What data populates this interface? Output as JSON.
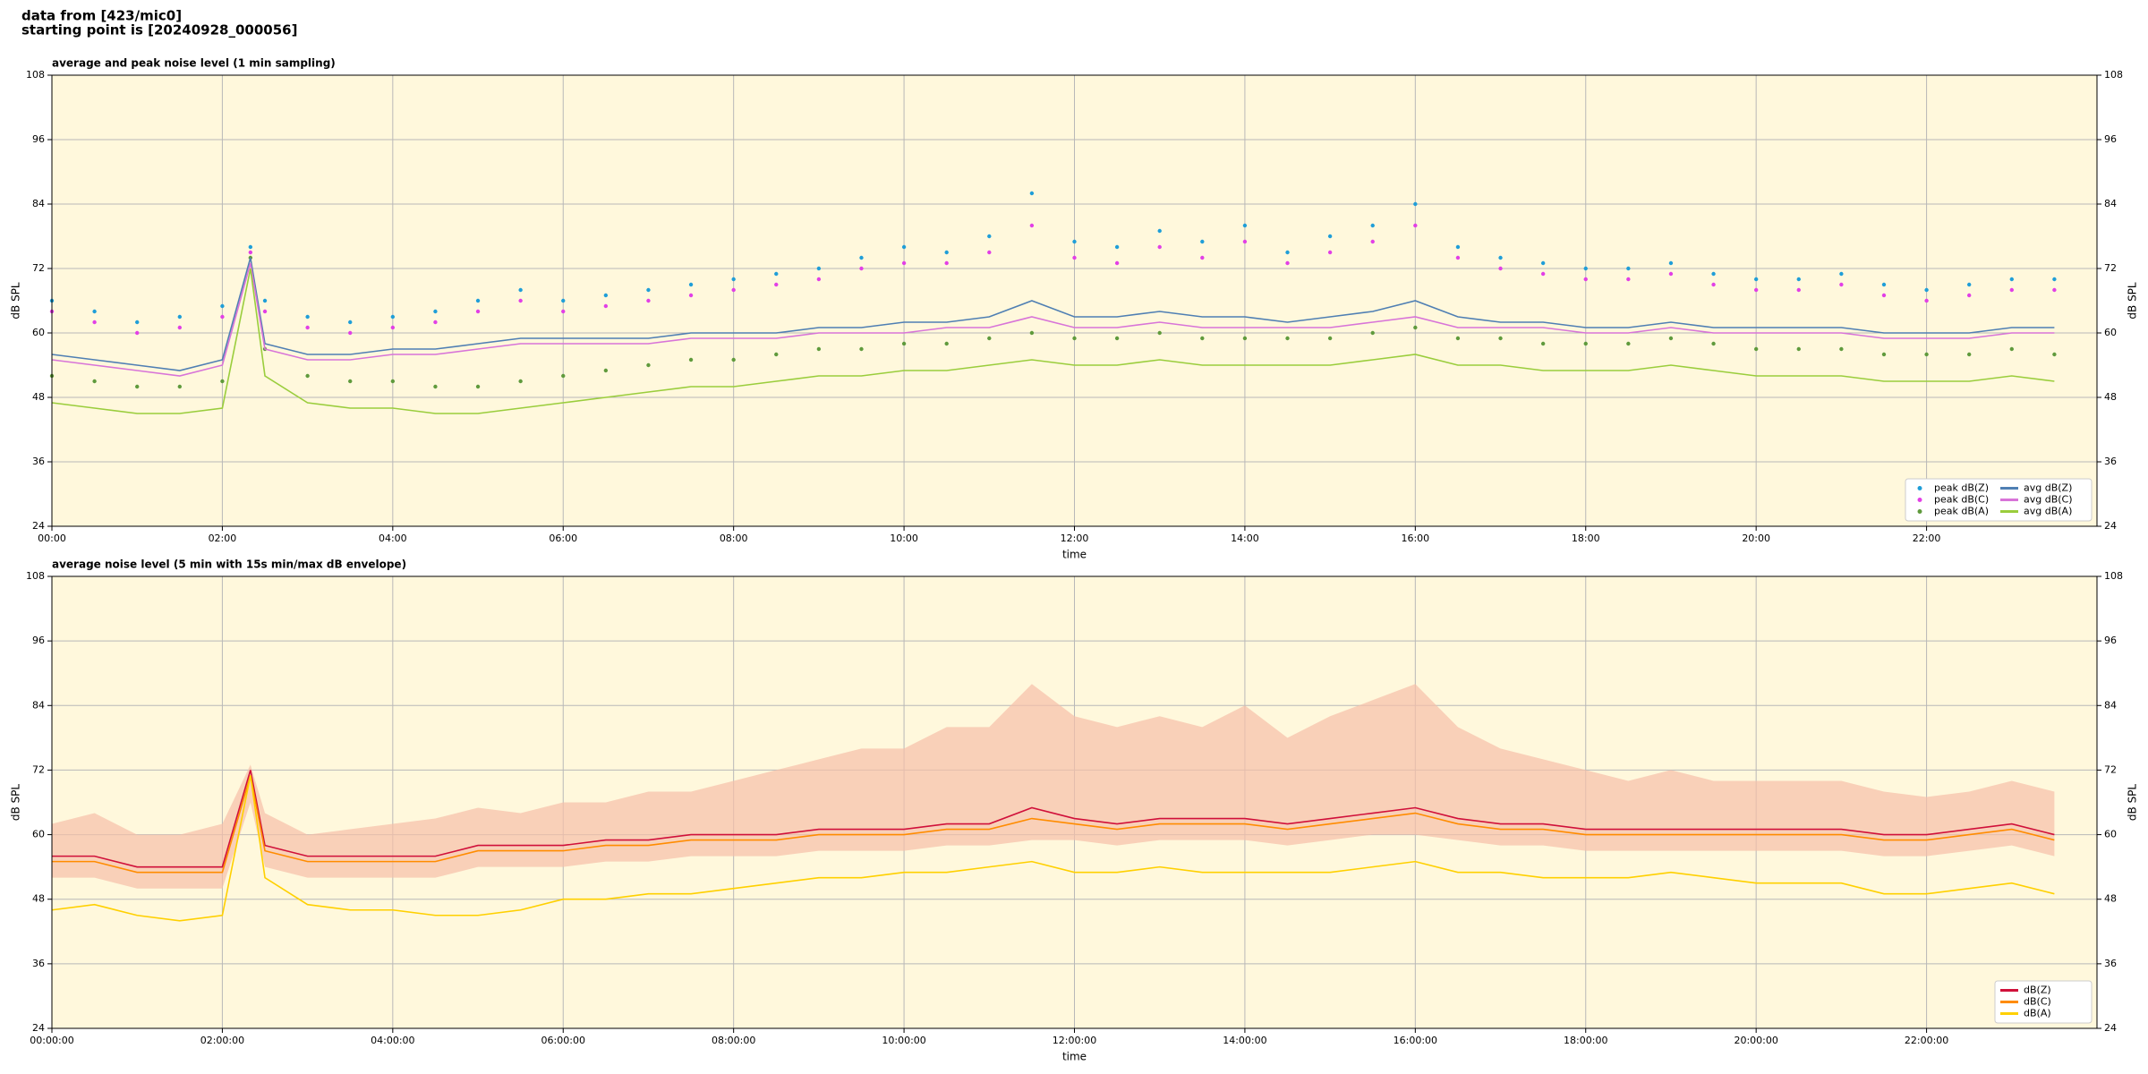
{
  "header": {
    "line1": "data from [423/mic0]",
    "line2": "starting point is [20240928_000056]"
  },
  "chart_data": [
    {
      "type": "line",
      "title": "average and peak noise level (1 min sampling)",
      "xlabel": "time",
      "ylabel": "dB SPL",
      "xlim": [
        0,
        24
      ],
      "ylim": [
        24,
        108
      ],
      "grid": true,
      "legend": "lower right",
      "legend_ncol": 2,
      "xticks": [
        {
          "value": 0,
          "label": "00:00"
        },
        {
          "value": 2,
          "label": "02:00"
        },
        {
          "value": 4,
          "label": "04:00"
        },
        {
          "value": 6,
          "label": "06:00"
        },
        {
          "value": 8,
          "label": "08:00"
        },
        {
          "value": 10,
          "label": "10:00"
        },
        {
          "value": 12,
          "label": "12:00"
        },
        {
          "value": 14,
          "label": "14:00"
        },
        {
          "value": 16,
          "label": "16:00"
        },
        {
          "value": 18,
          "label": "18:00"
        },
        {
          "value": 20,
          "label": "20:00"
        },
        {
          "value": 22,
          "label": "22:00"
        }
      ],
      "yticks": [
        24,
        36,
        48,
        60,
        72,
        84,
        96,
        108
      ],
      "x": [
        0,
        0.5,
        1,
        1.5,
        2,
        2.33,
        2.5,
        3,
        3.5,
        4,
        4.5,
        5,
        5.5,
        6,
        6.5,
        7,
        7.5,
        8,
        8.5,
        9,
        9.5,
        10,
        10.5,
        11,
        11.5,
        12,
        12.5,
        13,
        13.5,
        14,
        14.5,
        15,
        15.5,
        16,
        16.5,
        17,
        17.5,
        18,
        18.5,
        19,
        19.5,
        20,
        20.5,
        21,
        21.5,
        22,
        22.5,
        23,
        23.5
      ],
      "series": [
        {
          "name": "peak dB(Z)",
          "kind": "scatter",
          "color": "#1f9ed8",
          "values": [
            66,
            64,
            62,
            63,
            65,
            76,
            66,
            63,
            62,
            63,
            64,
            66,
            68,
            66,
            67,
            68,
            69,
            70,
            71,
            72,
            74,
            76,
            75,
            78,
            86,
            77,
            76,
            79,
            77,
            80,
            75,
            78,
            80,
            84,
            76,
            74,
            73,
            72,
            72,
            73,
            71,
            70,
            70,
            71,
            69,
            68,
            69,
            70,
            70
          ]
        },
        {
          "name": "peak dB(C)",
          "kind": "scatter",
          "color": "#e23fe6",
          "values": [
            64,
            62,
            60,
            61,
            63,
            75,
            64,
            61,
            60,
            61,
            62,
            64,
            66,
            64,
            65,
            66,
            67,
            68,
            69,
            70,
            72,
            73,
            73,
            75,
            80,
            74,
            73,
            76,
            74,
            77,
            73,
            75,
            77,
            80,
            74,
            72,
            71,
            70,
            70,
            71,
            69,
            68,
            68,
            69,
            67,
            66,
            67,
            68,
            68
          ]
        },
        {
          "name": "peak dB(A)",
          "kind": "scatter",
          "color": "#5f9a3c",
          "values": [
            52,
            51,
            50,
            50,
            51,
            74,
            57,
            52,
            51,
            51,
            50,
            50,
            51,
            52,
            53,
            54,
            55,
            55,
            56,
            57,
            57,
            58,
            58,
            59,
            60,
            59,
            59,
            60,
            59,
            59,
            59,
            59,
            60,
            61,
            59,
            59,
            58,
            58,
            58,
            59,
            58,
            57,
            57,
            57,
            56,
            56,
            56,
            57,
            56
          ]
        },
        {
          "name": "avg dB(Z)",
          "kind": "line",
          "color": "#4f7fb3",
          "values": [
            56,
            55,
            54,
            53,
            55,
            74,
            58,
            56,
            56,
            57,
            57,
            58,
            59,
            59,
            59,
            59,
            60,
            60,
            60,
            61,
            61,
            62,
            62,
            63,
            66,
            63,
            63,
            64,
            63,
            63,
            62,
            63,
            64,
            66,
            63,
            62,
            62,
            61,
            61,
            62,
            61,
            61,
            61,
            61,
            60,
            60,
            60,
            61,
            61
          ]
        },
        {
          "name": "avg dB(C)",
          "kind": "line",
          "color": "#d874d8",
          "values": [
            55,
            54,
            53,
            52,
            54,
            73,
            57,
            55,
            55,
            56,
            56,
            57,
            58,
            58,
            58,
            58,
            59,
            59,
            59,
            60,
            60,
            60,
            61,
            61,
            63,
            61,
            61,
            62,
            61,
            61,
            61,
            61,
            62,
            63,
            61,
            61,
            61,
            60,
            60,
            61,
            60,
            60,
            60,
            60,
            59,
            59,
            59,
            60,
            60
          ]
        },
        {
          "name": "avg dB(A)",
          "kind": "line",
          "color": "#9acd3c",
          "values": [
            47,
            46,
            45,
            45,
            46,
            72,
            52,
            47,
            46,
            46,
            45,
            45,
            46,
            47,
            48,
            49,
            50,
            50,
            51,
            52,
            52,
            53,
            53,
            54,
            55,
            54,
            54,
            55,
            54,
            54,
            54,
            54,
            55,
            56,
            54,
            54,
            53,
            53,
            53,
            54,
            53,
            52,
            52,
            52,
            51,
            51,
            51,
            52,
            51
          ]
        }
      ]
    },
    {
      "type": "line",
      "title": "average noise level (5 min with 15s min/max dB envelope)",
      "xlabel": "time",
      "ylabel": "dB SPL",
      "xlim": [
        0,
        24
      ],
      "ylim": [
        24,
        108
      ],
      "grid": true,
      "legend": "lower right",
      "legend_ncol": 1,
      "xticks": [
        {
          "value": 0,
          "label": "00:00:00"
        },
        {
          "value": 2,
          "label": "02:00:00"
        },
        {
          "value": 4,
          "label": "04:00:00"
        },
        {
          "value": 6,
          "label": "06:00:00"
        },
        {
          "value": 8,
          "label": "08:00:00"
        },
        {
          "value": 10,
          "label": "10:00:00"
        },
        {
          "value": 12,
          "label": "12:00:00"
        },
        {
          "value": 14,
          "label": "14:00:00"
        },
        {
          "value": 16,
          "label": "16:00:00"
        },
        {
          "value": 18,
          "label": "18:00:00"
        },
        {
          "value": 20,
          "label": "20:00:00"
        },
        {
          "value": 22,
          "label": "22:00:00"
        }
      ],
      "yticks": [
        24,
        36,
        48,
        60,
        72,
        84,
        96,
        108
      ],
      "x": [
        0,
        0.5,
        1,
        1.5,
        2,
        2.33,
        2.5,
        3,
        3.5,
        4,
        4.5,
        5,
        5.5,
        6,
        6.5,
        7,
        7.5,
        8,
        8.5,
        9,
        9.5,
        10,
        10.5,
        11,
        11.5,
        12,
        12.5,
        13,
        13.5,
        14,
        14.5,
        15,
        15.5,
        16,
        16.5,
        17,
        17.5,
        18,
        18.5,
        19,
        19.5,
        20,
        20.5,
        21,
        21.5,
        22,
        22.5,
        23,
        23.5
      ],
      "envelope": {
        "color": "#f6bfa8",
        "lower": [
          52,
          52,
          50,
          50,
          50,
          66,
          54,
          52,
          52,
          52,
          52,
          54,
          54,
          54,
          55,
          55,
          56,
          56,
          56,
          57,
          57,
          57,
          58,
          58,
          59,
          59,
          58,
          59,
          59,
          59,
          58,
          59,
          60,
          60,
          59,
          58,
          58,
          57,
          57,
          57,
          57,
          57,
          57,
          57,
          56,
          56,
          57,
          58,
          56
        ],
        "upper": [
          62,
          64,
          60,
          60,
          62,
          73,
          64,
          60,
          61,
          62,
          63,
          65,
          64,
          66,
          66,
          68,
          68,
          70,
          72,
          74,
          76,
          76,
          80,
          80,
          88,
          82,
          80,
          82,
          80,
          84,
          78,
          82,
          85,
          88,
          80,
          76,
          74,
          72,
          70,
          72,
          70,
          70,
          70,
          70,
          68,
          67,
          68,
          70,
          68
        ]
      },
      "series": [
        {
          "name": "dB(Z)",
          "kind": "line",
          "color": "#d0103a",
          "values": [
            56,
            56,
            54,
            54,
            54,
            72,
            58,
            56,
            56,
            56,
            56,
            58,
            58,
            58,
            59,
            59,
            60,
            60,
            60,
            61,
            61,
            61,
            62,
            62,
            65,
            63,
            62,
            63,
            63,
            63,
            62,
            63,
            64,
            65,
            63,
            62,
            62,
            61,
            61,
            61,
            61,
            61,
            61,
            61,
            60,
            60,
            61,
            62,
            60
          ]
        },
        {
          "name": "dB(C)",
          "kind": "line",
          "color": "#ff8c00",
          "values": [
            55,
            55,
            53,
            53,
            53,
            71,
            57,
            55,
            55,
            55,
            55,
            57,
            57,
            57,
            58,
            58,
            59,
            59,
            59,
            60,
            60,
            60,
            61,
            61,
            63,
            62,
            61,
            62,
            62,
            62,
            61,
            62,
            63,
            64,
            62,
            61,
            61,
            60,
            60,
            60,
            60,
            60,
            60,
            60,
            59,
            59,
            60,
            61,
            59
          ]
        },
        {
          "name": "dB(A)",
          "kind": "line",
          "color": "#ffd000",
          "values": [
            46,
            47,
            45,
            44,
            45,
            71,
            52,
            47,
            46,
            46,
            45,
            45,
            46,
            48,
            48,
            49,
            49,
            50,
            51,
            52,
            52,
            53,
            53,
            54,
            55,
            53,
            53,
            54,
            53,
            53,
            53,
            53,
            54,
            55,
            53,
            53,
            52,
            52,
            52,
            53,
            52,
            51,
            51,
            51,
            49,
            49,
            50,
            51,
            49
          ]
        }
      ]
    }
  ]
}
